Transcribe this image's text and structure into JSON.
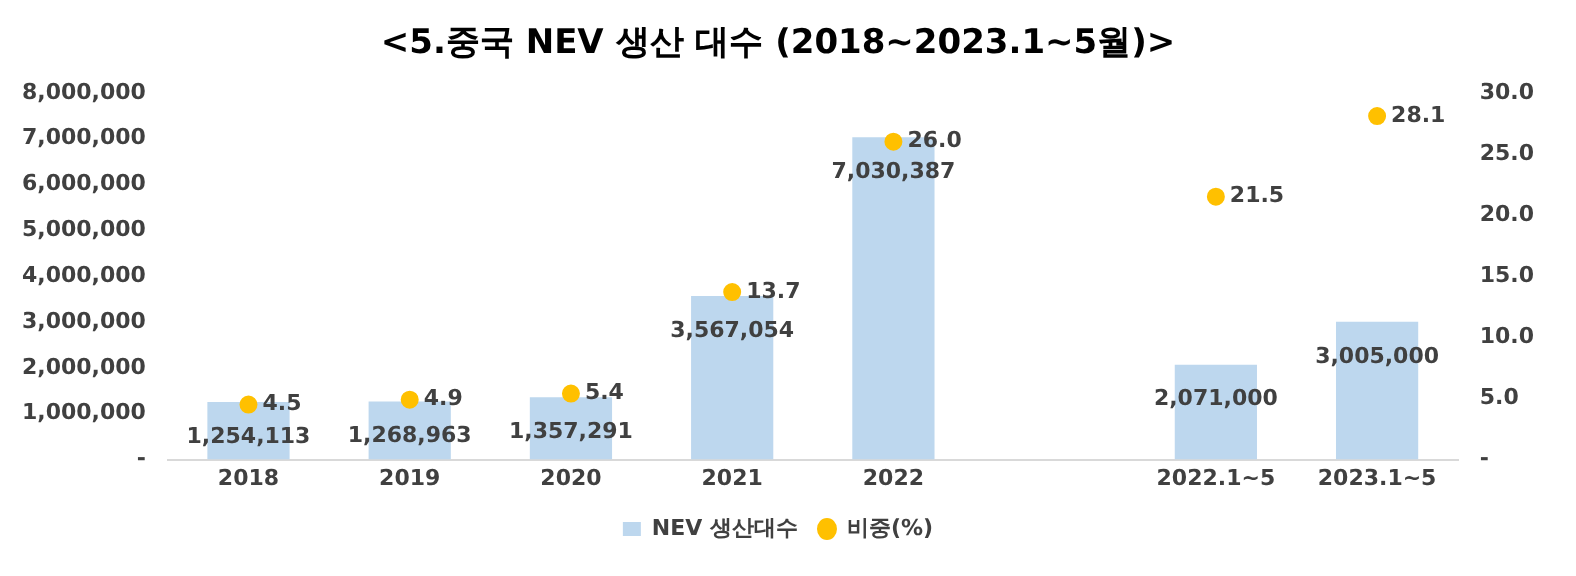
{
  "chart_data": {
    "type": "bar",
    "title": "<5.중국 NEV 생산 대수 (2018~2023.1~5월)>",
    "categories": [
      "2018",
      "2019",
      "2020",
      "2021",
      "2022",
      null,
      "2022.1~5",
      "2023.1~5"
    ],
    "series": [
      {
        "name": "NEV 생산대수",
        "color": "#bdd7ee",
        "values": [
          1254113,
          1268963,
          1357291,
          3567054,
          7030387,
          null,
          2071000,
          3005000
        ],
        "value_labels": [
          "1,254,113",
          "1,268,963",
          "1,357,291",
          "3,567,054",
          "7,030,387",
          null,
          "2,071,000",
          "3,005,000"
        ]
      },
      {
        "name": "비중(%)",
        "type": "scatter",
        "axis": "y2",
        "color": "#ffc000",
        "values": [
          4.5,
          4.9,
          5.4,
          13.7,
          26.0,
          null,
          21.5,
          28.1
        ],
        "value_labels": [
          "4.5",
          "4.9",
          "5.4",
          "13.7",
          "26.0",
          null,
          "21.5",
          "28.1"
        ]
      }
    ],
    "ylim": [
      0,
      8000000
    ],
    "yticks": [
      {
        "value": 0,
        "label": "-"
      },
      {
        "value": 1000000,
        "label": "1,000,000"
      },
      {
        "value": 2000000,
        "label": "2,000,000"
      },
      {
        "value": 3000000,
        "label": "3,000,000"
      },
      {
        "value": 4000000,
        "label": "4,000,000"
      },
      {
        "value": 5000000,
        "label": "5,000,000"
      },
      {
        "value": 6000000,
        "label": "6,000,000"
      },
      {
        "value": 7000000,
        "label": "7,000,000"
      },
      {
        "value": 8000000,
        "label": "8,000,000"
      }
    ],
    "y2lim": [
      0,
      30
    ],
    "y2ticks": [
      {
        "value": 0,
        "label": "-"
      },
      {
        "value": 5,
        "label": "5.0"
      },
      {
        "value": 10,
        "label": "10.0"
      },
      {
        "value": 15,
        "label": "15.0"
      },
      {
        "value": 20,
        "label": "20.0"
      },
      {
        "value": 25,
        "label": "25.0"
      },
      {
        "value": 30,
        "label": "30.0"
      }
    ],
    "grid": false,
    "legend": "bottom",
    "marker": "circle"
  }
}
